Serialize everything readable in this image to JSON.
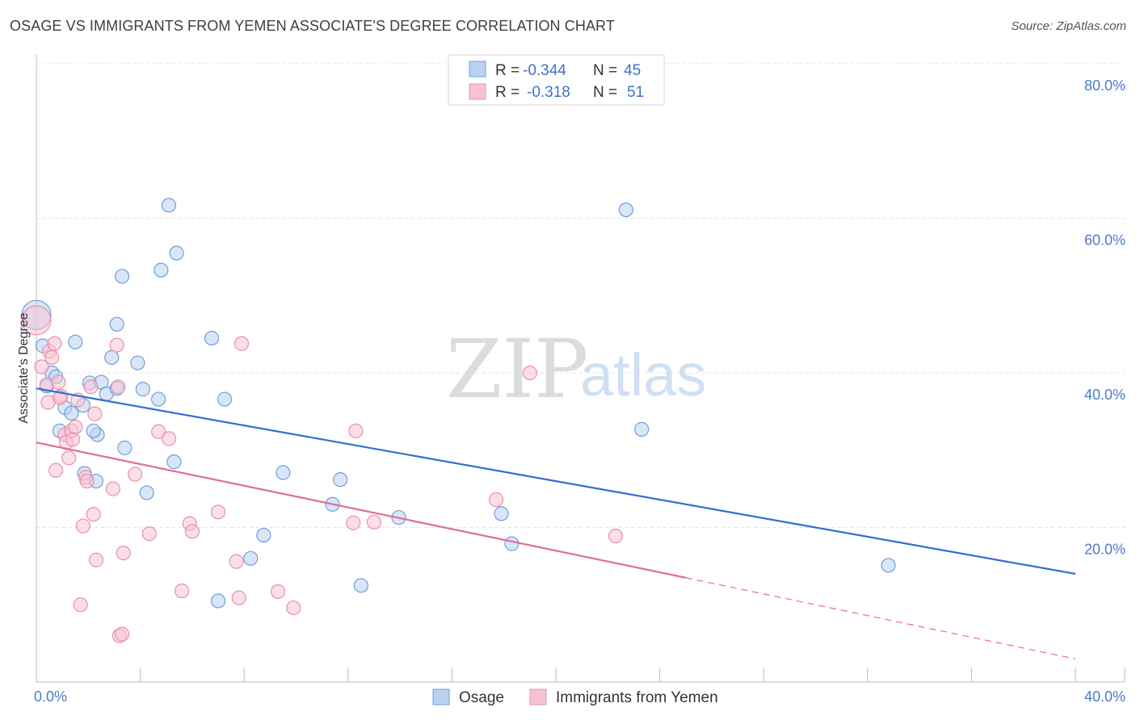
{
  "title": "OSAGE VS IMMIGRANTS FROM YEMEN ASSOCIATE'S DEGREE CORRELATION CHART",
  "source": "Source: ZipAtlas.com",
  "watermark": {
    "zip": "ZIP",
    "atlas": "atlas"
  },
  "colors": {
    "blue_fill": "#b9d2f2",
    "blue_stroke": "#6f9fd8",
    "blue_line": "#2f6fcf",
    "pink_fill": "#f7c3d3",
    "pink_stroke": "#e890ad",
    "pink_line": "#e06d98",
    "grid": "#e3e3e3",
    "axis_text": "#4a7cc9"
  },
  "legend": {
    "rows": [
      {
        "r_label": "R =",
        "r_value": "-0.344",
        "n_label": "N =",
        "n_value": "45"
      },
      {
        "r_label": "R =",
        "r_value": "-0.318",
        "n_label": "N =",
        "n_value": "51"
      }
    ]
  },
  "chart_data": {
    "type": "scatter",
    "title": "OSAGE VS IMMIGRANTS FROM YEMEN ASSOCIATE'S DEGREE CORRELATION CHART",
    "xlabel": "",
    "ylabel": "Associate's Degree",
    "xlim": [
      0,
      40
    ],
    "ylim": [
      0,
      80
    ],
    "x_tick_labels": [
      "0.0%",
      "40.0%"
    ],
    "y_tick_labels": [
      "20.0%",
      "40.0%",
      "60.0%",
      "80.0%"
    ],
    "y_tick_values": [
      20,
      40,
      60,
      80
    ],
    "legend_position": "top-center",
    "series": [
      {
        "name": "Osage",
        "color": "blue",
        "trend": {
          "x0": 0,
          "y0": 38.0,
          "x1": 40,
          "y1": 14.0,
          "solid_to": 40
        },
        "points": [
          {
            "x": 0.0,
            "y": 47.5,
            "big": true
          },
          {
            "x": 0.25,
            "y": 43.5
          },
          {
            "x": 0.4,
            "y": 38.3
          },
          {
            "x": 0.6,
            "y": 40.0
          },
          {
            "x": 0.75,
            "y": 39.5
          },
          {
            "x": 0.9,
            "y": 32.5
          },
          {
            "x": 1.1,
            "y": 35.5
          },
          {
            "x": 1.35,
            "y": 34.8
          },
          {
            "x": 1.5,
            "y": 44.0
          },
          {
            "x": 1.8,
            "y": 35.8
          },
          {
            "x": 1.85,
            "y": 27.0
          },
          {
            "x": 2.05,
            "y": 38.7
          },
          {
            "x": 2.3,
            "y": 26.0
          },
          {
            "x": 2.35,
            "y": 32.0
          },
          {
            "x": 2.5,
            "y": 38.8
          },
          {
            "x": 2.7,
            "y": 37.3
          },
          {
            "x": 2.9,
            "y": 42.0
          },
          {
            "x": 3.1,
            "y": 46.3
          },
          {
            "x": 3.3,
            "y": 52.5
          },
          {
            "x": 3.4,
            "y": 30.3
          },
          {
            "x": 3.1,
            "y": 38.0
          },
          {
            "x": 3.9,
            "y": 41.3
          },
          {
            "x": 4.1,
            "y": 37.9
          },
          {
            "x": 4.25,
            "y": 24.5
          },
          {
            "x": 4.7,
            "y": 36.6
          },
          {
            "x": 4.8,
            "y": 53.3
          },
          {
            "x": 5.1,
            "y": 61.7
          },
          {
            "x": 5.3,
            "y": 28.5
          },
          {
            "x": 5.4,
            "y": 55.5
          },
          {
            "x": 6.75,
            "y": 44.5
          },
          {
            "x": 7.0,
            "y": 10.5
          },
          {
            "x": 7.25,
            "y": 36.6
          },
          {
            "x": 8.25,
            "y": 16.0
          },
          {
            "x": 8.75,
            "y": 19.0
          },
          {
            "x": 9.5,
            "y": 27.1
          },
          {
            "x": 11.4,
            "y": 23.0
          },
          {
            "x": 11.7,
            "y": 26.2
          },
          {
            "x": 12.5,
            "y": 12.5
          },
          {
            "x": 13.95,
            "y": 21.3
          },
          {
            "x": 17.9,
            "y": 21.8
          },
          {
            "x": 18.3,
            "y": 17.9
          },
          {
            "x": 22.7,
            "y": 61.1
          },
          {
            "x": 23.3,
            "y": 32.7
          },
          {
            "x": 32.8,
            "y": 15.1
          },
          {
            "x": 2.2,
            "y": 32.5
          }
        ]
      },
      {
        "name": "Immigrants from Yemen",
        "color": "pink",
        "trend": {
          "x0": 0,
          "y0": 31.0,
          "x1": 40,
          "y1": 3.0,
          "solid_to": 25.0
        },
        "points": [
          {
            "x": 0.0,
            "y": 46.8,
            "big": true
          },
          {
            "x": 0.2,
            "y": 40.8
          },
          {
            "x": 0.4,
            "y": 38.5
          },
          {
            "x": 0.45,
            "y": 36.2
          },
          {
            "x": 0.5,
            "y": 42.8
          },
          {
            "x": 0.6,
            "y": 42.0
          },
          {
            "x": 0.7,
            "y": 43.8
          },
          {
            "x": 0.75,
            "y": 27.4
          },
          {
            "x": 0.85,
            "y": 38.8
          },
          {
            "x": 0.95,
            "y": 37.0
          },
          {
            "x": 1.1,
            "y": 32.0
          },
          {
            "x": 1.15,
            "y": 31.0
          },
          {
            "x": 1.25,
            "y": 29.0
          },
          {
            "x": 1.35,
            "y": 32.5
          },
          {
            "x": 1.4,
            "y": 31.4
          },
          {
            "x": 1.5,
            "y": 33.0
          },
          {
            "x": 1.6,
            "y": 36.5
          },
          {
            "x": 1.7,
            "y": 10.0
          },
          {
            "x": 1.8,
            "y": 20.2
          },
          {
            "x": 1.9,
            "y": 26.5
          },
          {
            "x": 1.95,
            "y": 26.0
          },
          {
            "x": 2.1,
            "y": 38.2
          },
          {
            "x": 2.2,
            "y": 21.7
          },
          {
            "x": 2.3,
            "y": 15.8
          },
          {
            "x": 2.25,
            "y": 34.7
          },
          {
            "x": 2.95,
            "y": 25.0
          },
          {
            "x": 3.1,
            "y": 43.6
          },
          {
            "x": 3.15,
            "y": 38.2
          },
          {
            "x": 3.2,
            "y": 6.0
          },
          {
            "x": 3.3,
            "y": 6.2
          },
          {
            "x": 3.35,
            "y": 16.7
          },
          {
            "x": 3.8,
            "y": 26.9
          },
          {
            "x": 4.35,
            "y": 19.2
          },
          {
            "x": 4.7,
            "y": 32.4
          },
          {
            "x": 5.1,
            "y": 31.5
          },
          {
            "x": 5.6,
            "y": 11.8
          },
          {
            "x": 5.9,
            "y": 20.5
          },
          {
            "x": 6.0,
            "y": 19.5
          },
          {
            "x": 7.0,
            "y": 22.0
          },
          {
            "x": 7.7,
            "y": 15.6
          },
          {
            "x": 7.8,
            "y": 10.9
          },
          {
            "x": 7.9,
            "y": 43.8
          },
          {
            "x": 9.3,
            "y": 11.7
          },
          {
            "x": 9.9,
            "y": 9.6
          },
          {
            "x": 12.2,
            "y": 20.6
          },
          {
            "x": 12.3,
            "y": 32.5
          },
          {
            "x": 13.0,
            "y": 20.7
          },
          {
            "x": 17.7,
            "y": 23.6
          },
          {
            "x": 19.0,
            "y": 40.0
          },
          {
            "x": 22.3,
            "y": 18.9
          },
          {
            "x": 0.9,
            "y": 36.8
          }
        ]
      }
    ]
  }
}
